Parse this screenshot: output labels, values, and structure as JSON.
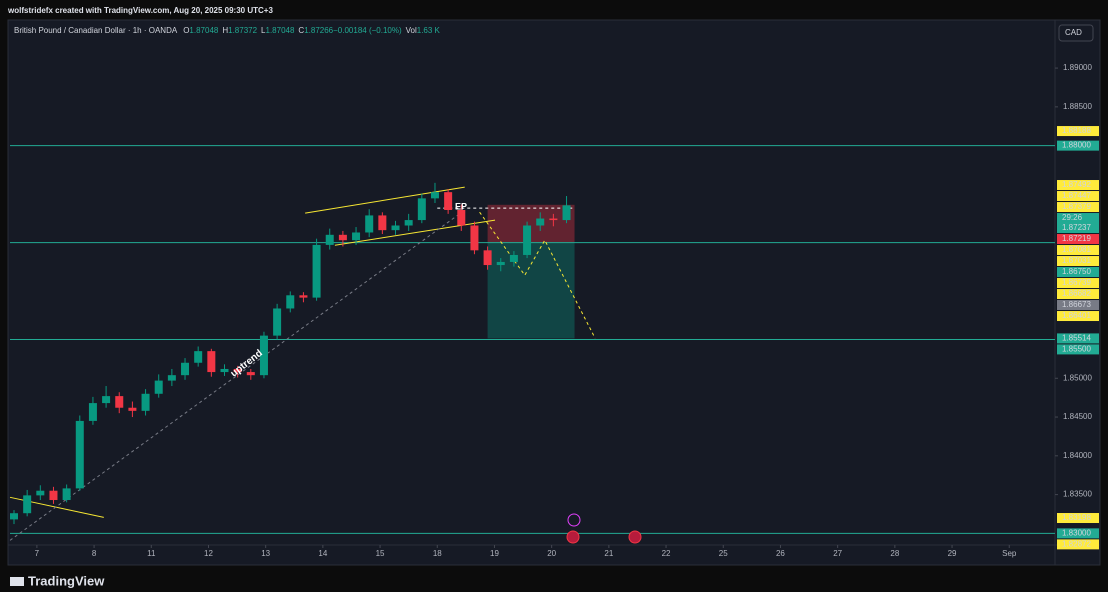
{
  "header": "wolfstridefx created with TradingView.com, Aug 20, 2025 09:30 UTC+3",
  "brand": "TradingView",
  "currency_button": "CAD",
  "legend": {
    "symbol": "British Pound / Canadian Dollar · 1h · OANDA",
    "items": [
      {
        "key": "O",
        "value": "1.87048"
      },
      {
        "key": "H",
        "value": "1.87372"
      },
      {
        "key": "L",
        "value": "1.87048"
      },
      {
        "key": "C",
        "value": "1.87266"
      },
      {
        "key": "",
        "value": "−0.00184 (−0.10%)"
      },
      {
        "key": "Vol",
        "value": "1.63 K"
      }
    ]
  },
  "annotations": {
    "entry": "EP",
    "trend": "uptrend"
  },
  "chart_data": {
    "type": "candlestick",
    "up_color": "#089981",
    "down_color": "#f23645",
    "xlim": [
      -0.47,
      17.8
    ],
    "ylim": [
      1.8285,
      1.8962
    ],
    "xticks": [
      {
        "value": 0,
        "label": "7"
      },
      {
        "value": 1,
        "label": "8"
      },
      {
        "value": 2,
        "label": "11"
      },
      {
        "value": 3,
        "label": "12"
      },
      {
        "value": 4,
        "label": "13"
      },
      {
        "value": 5,
        "label": "14"
      },
      {
        "value": 6,
        "label": "15"
      },
      {
        "value": 7,
        "label": "18"
      },
      {
        "value": 8,
        "label": "19"
      },
      {
        "value": 9,
        "label": "20"
      },
      {
        "value": 10,
        "label": "21"
      },
      {
        "value": 11,
        "label": "22"
      },
      {
        "value": 12,
        "label": "25"
      },
      {
        "value": 13,
        "label": "26"
      },
      {
        "value": 14,
        "label": "27"
      },
      {
        "value": 15,
        "label": "28"
      },
      {
        "value": 16,
        "label": "29"
      },
      {
        "value": 17,
        "label": "Sep"
      }
    ],
    "yticks": [
      {
        "value": 1.89,
        "label": "1.89000"
      },
      {
        "value": 1.885,
        "label": "1.88500"
      },
      {
        "value": 1.85,
        "label": "1.85000"
      },
      {
        "value": 1.845,
        "label": "1.84500"
      },
      {
        "value": 1.84,
        "label": "1.84000"
      },
      {
        "value": 1.835,
        "label": "1.83500"
      }
    ],
    "x": [
      -0.4,
      -0.17,
      0.06,
      0.29,
      0.52,
      0.75,
      0.98,
      1.21,
      1.44,
      1.67,
      1.9,
      2.13,
      2.36,
      2.59,
      2.82,
      3.05,
      3.28,
      3.51,
      3.74,
      3.97,
      4.2,
      4.43,
      4.66,
      4.89,
      5.12,
      5.35,
      5.58,
      5.81,
      6.04,
      6.27,
      6.5,
      6.73,
      6.96,
      7.19,
      7.42,
      7.65,
      7.88,
      8.11,
      8.34,
      8.57,
      8.8,
      9.03,
      9.26
    ],
    "open": [
      1.8318,
      1.8326,
      1.8349,
      1.8355,
      1.8343,
      1.8358,
      1.8445,
      1.8468,
      1.8477,
      1.8462,
      1.8458,
      1.848,
      1.8497,
      1.8504,
      1.852,
      1.8535,
      1.8508,
      1.8512,
      1.8508,
      1.8504,
      1.8555,
      1.859,
      1.8607,
      1.8604,
      1.8672,
      1.8685,
      1.8678,
      1.8688,
      1.871,
      1.8691,
      1.8697,
      1.8704,
      1.8732,
      1.874,
      1.8717,
      1.8697,
      1.8665,
      1.8646,
      1.865,
      1.8659,
      1.8697,
      1.8706,
      1.8704
    ],
    "high": [
      1.833,
      1.8356,
      1.8362,
      1.836,
      1.8363,
      1.8452,
      1.8476,
      1.849,
      1.8482,
      1.847,
      1.8486,
      1.8505,
      1.8512,
      1.8526,
      1.8541,
      1.8538,
      1.8518,
      1.8516,
      1.8512,
      1.856,
      1.8596,
      1.8612,
      1.8611,
      1.868,
      1.8693,
      1.869,
      1.8695,
      1.8718,
      1.8714,
      1.8703,
      1.8712,
      1.8738,
      1.8752,
      1.8744,
      1.8724,
      1.8702,
      1.867,
      1.8655,
      1.8664,
      1.8702,
      1.8714,
      1.8712,
      1.8735
    ],
    "low": [
      1.8312,
      1.8322,
      1.8343,
      1.8338,
      1.834,
      1.8355,
      1.844,
      1.8462,
      1.8455,
      1.845,
      1.8452,
      1.8475,
      1.849,
      1.8498,
      1.8515,
      1.8502,
      1.8503,
      1.8501,
      1.8498,
      1.85,
      1.855,
      1.8585,
      1.8598,
      1.86,
      1.8666,
      1.867,
      1.8672,
      1.8682,
      1.8686,
      1.8685,
      1.869,
      1.87,
      1.8726,
      1.8712,
      1.869,
      1.866,
      1.864,
      1.8638,
      1.8644,
      1.8655,
      1.869,
      1.8696,
      1.87
    ],
    "close": [
      1.8326,
      1.8349,
      1.8355,
      1.8343,
      1.8358,
      1.8445,
      1.8468,
      1.8477,
      1.8462,
      1.8458,
      1.848,
      1.8497,
      1.8504,
      1.852,
      1.8535,
      1.8508,
      1.8512,
      1.8508,
      1.8504,
      1.8555,
      1.859,
      1.8607,
      1.8604,
      1.8672,
      1.8685,
      1.8678,
      1.8688,
      1.871,
      1.8691,
      1.8697,
      1.8704,
      1.8732,
      1.874,
      1.8717,
      1.8697,
      1.8665,
      1.8646,
      1.865,
      1.8659,
      1.8697,
      1.8706,
      1.8704,
      1.8723
    ],
    "hlines": [
      {
        "value": 1.88,
        "color": "#22ab94"
      },
      {
        "value": 1.8675,
        "color": "#22ab94"
      },
      {
        "value": 1.855,
        "color": "#22ab94"
      },
      {
        "value": 1.83,
        "color": "#22ab94"
      }
    ],
    "trendlines": [
      {
        "color": "#f7e733",
        "dash": false,
        "x": [
          4.69,
          7.48
        ],
        "y": [
          1.87129,
          1.87465
        ]
      },
      {
        "color": "#f7e733",
        "dash": false,
        "x": [
          5.21,
          8.01
        ],
        "y": [
          1.86716,
          1.87039
        ]
      },
      {
        "color": "#f7e733",
        "dash": false,
        "x": [
          -0.47,
          1.17
        ],
        "y": [
          1.83465,
          1.83206
        ]
      },
      {
        "color": "#787b86",
        "dash": true,
        "x": [
          -0.47,
          7.48
        ],
        "y": [
          1.8291,
          1.87168
        ]
      },
      {
        "color": "#f7e733",
        "dash": true,
        "x": [
          7.74,
          8.53,
          8.88,
          9.76
        ],
        "y": [
          1.87142,
          1.86329,
          1.86781,
          1.85516
        ]
      },
      {
        "color": "#ffffff",
        "dash": true,
        "x": [
          7.0,
          9.4
        ],
        "y": [
          1.87194,
          1.87194
        ]
      }
    ],
    "position": {
      "x": [
        7.88,
        9.4
      ],
      "stop": 1.87237,
      "entry": 1.8675,
      "target": 1.85514
    },
    "price_labels": [
      {
        "value": 1.88188,
        "label": "1.88188",
        "color": "#ffeb3b"
      },
      {
        "value": 1.88,
        "label": "1.88000",
        "color": "#22ab94"
      },
      {
        "value": 1.87492,
        "label": "1.87492",
        "color": "#ffeb3b"
      },
      {
        "value": 1.87447,
        "label": "1.87447",
        "color": "#ffeb3b"
      },
      {
        "value": 1.87379,
        "label": "1.87379",
        "color": "#ffeb3b"
      },
      {
        "value": 1.87237,
        "label": "1.87237",
        "color": "#22ab94",
        "countdown": "29:26"
      },
      {
        "value": 1.87219,
        "label": "1.87219",
        "color": "#f23645"
      },
      {
        "value": 1.87081,
        "label": "1.87081",
        "color": "#ffeb3b"
      },
      {
        "value": 1.87031,
        "label": "1.87031",
        "color": "#ffeb3b"
      },
      {
        "value": 1.8675,
        "label": "1.86750",
        "color": "#22ab94"
      },
      {
        "value": 1.86739,
        "label": "1.86739",
        "color": "#ffeb3b"
      },
      {
        "value": 1.86682,
        "label": "1.86682",
        "color": "#ffeb3b"
      },
      {
        "value": 1.86673,
        "label": "1.86673",
        "color": "#787b86"
      },
      {
        "value": 1.86401,
        "label": "1.86401",
        "color": "#ffeb3b"
      },
      {
        "value": 1.85514,
        "label": "1.85514",
        "color": "#22ab94"
      },
      {
        "value": 1.855,
        "label": "1.85500",
        "color": "#22ab94"
      },
      {
        "value": 1.83198,
        "label": "1.83198",
        "color": "#ffeb3b"
      },
      {
        "value": 1.83,
        "label": "1.83000",
        "color": "#22ab94"
      },
      {
        "value": 1.82872,
        "label": "1.82872",
        "color": "#ffeb3b"
      }
    ]
  }
}
